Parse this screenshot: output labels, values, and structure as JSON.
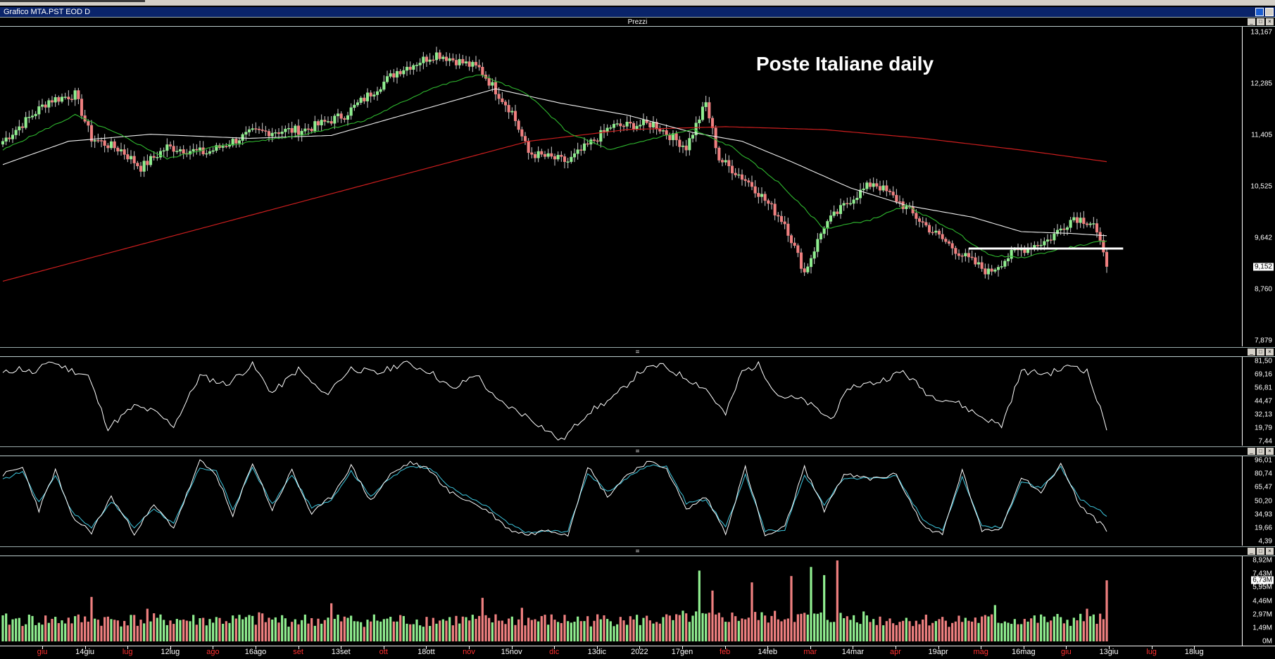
{
  "window": {
    "title": "Grafico MTA.PST EOD D"
  },
  "panels": {
    "price": {
      "label": "Prezzi"
    },
    "rsi": {
      "label": "="
    },
    "stoch": {
      "label": "="
    },
    "volume": {
      "label": "="
    }
  },
  "chart_data": {
    "type": "line",
    "title": "Poste Italiane daily",
    "colors": {
      "ma_short": "#2fb82f",
      "ma_mid": "#f0f0f0",
      "ma_long": "#cc1e1e",
      "up": "#90ee90",
      "down": "#f08080",
      "support": "#ffffff",
      "stoch_k": "#ffffff",
      "stoch_d": "#3ec8e0"
    },
    "price_axis": {
      "ticks": [
        "13,167",
        "12,285",
        "11,405",
        "10,525",
        "9,642",
        "8,760",
        "7,879"
      ],
      "range": [
        7.879,
        13.167
      ],
      "last": "9,152"
    },
    "rsi_axis": {
      "ticks": [
        "81,50",
        "69,16",
        "56,81",
        "44,47",
        "32,13",
        "19,79",
        "7,44"
      ]
    },
    "stoch_axis": {
      "ticks": [
        "96,01",
        "80,74",
        "65,47",
        "50,20",
        "34,93",
        "19,66",
        "4,39"
      ]
    },
    "volume_axis": {
      "ticks": [
        "8,92M",
        "7,43M",
        "5,95M",
        "4,46M",
        "2,97M",
        "1,49M",
        "0M"
      ],
      "last": "6,73M"
    },
    "x_axis": {
      "labels": [
        {
          "text": "giu",
          "month": true
        },
        {
          "text": "14giu",
          "month": false
        },
        {
          "text": "lug",
          "month": true
        },
        {
          "text": "12lug",
          "month": false
        },
        {
          "text": "ago",
          "month": true
        },
        {
          "text": "16ago",
          "month": false
        },
        {
          "text": "set",
          "month": true
        },
        {
          "text": "13set",
          "month": false
        },
        {
          "text": "ott",
          "month": true
        },
        {
          "text": "18ott",
          "month": false
        },
        {
          "text": "nov",
          "month": true
        },
        {
          "text": "15nov",
          "month": false
        },
        {
          "text": "dic",
          "month": true
        },
        {
          "text": "13dic",
          "month": false
        },
        {
          "text": "2022",
          "month": false
        },
        {
          "text": "17gen",
          "month": false
        },
        {
          "text": "feb",
          "month": true
        },
        {
          "text": "14feb",
          "month": false
        },
        {
          "text": "mar",
          "month": true
        },
        {
          "text": "14mar",
          "month": false
        },
        {
          "text": "apr",
          "month": true
        },
        {
          "text": "19apr",
          "month": false
        },
        {
          "text": "mag",
          "month": true
        },
        {
          "text": "16mag",
          "month": false
        },
        {
          "text": "giu",
          "month": true
        },
        {
          "text": "13giu",
          "month": false
        },
        {
          "text": "lug",
          "month": true
        },
        {
          "text": "18lug",
          "month": false
        }
      ]
    },
    "close_anchors": [
      [
        0,
        11.3
      ],
      [
        14,
        12.0
      ],
      [
        22,
        12.1
      ],
      [
        27,
        11.35
      ],
      [
        36,
        11.15
      ],
      [
        42,
        10.85
      ],
      [
        50,
        11.2
      ],
      [
        62,
        11.1
      ],
      [
        76,
        11.45
      ],
      [
        92,
        11.5
      ],
      [
        104,
        11.75
      ],
      [
        120,
        12.5
      ],
      [
        132,
        12.8
      ],
      [
        145,
        12.55
      ],
      [
        155,
        11.8
      ],
      [
        160,
        11.1
      ],
      [
        172,
        10.95
      ],
      [
        185,
        11.55
      ],
      [
        198,
        11.6
      ],
      [
        208,
        11.2
      ],
      [
        214,
        11.95
      ],
      [
        218,
        11.0
      ],
      [
        228,
        10.55
      ],
      [
        238,
        9.9
      ],
      [
        244,
        9.05
      ],
      [
        250,
        9.85
      ],
      [
        258,
        10.3
      ],
      [
        265,
        10.6
      ],
      [
        272,
        10.3
      ],
      [
        282,
        9.8
      ],
      [
        292,
        9.35
      ],
      [
        300,
        9.05
      ],
      [
        308,
        9.4
      ],
      [
        318,
        9.6
      ],
      [
        326,
        10.0
      ],
      [
        332,
        9.9
      ],
      [
        336,
        9.152
      ]
    ],
    "ma_short_anchors": [
      [
        0,
        11.15
      ],
      [
        22,
        11.75
      ],
      [
        36,
        11.4
      ],
      [
        50,
        11.0
      ],
      [
        64,
        11.2
      ],
      [
        90,
        11.4
      ],
      [
        110,
        11.65
      ],
      [
        130,
        12.2
      ],
      [
        145,
        12.45
      ],
      [
        160,
        12.1
      ],
      [
        172,
        11.45
      ],
      [
        185,
        11.15
      ],
      [
        198,
        11.35
      ],
      [
        210,
        11.5
      ],
      [
        222,
        11.2
      ],
      [
        236,
        10.6
      ],
      [
        250,
        9.8
      ],
      [
        264,
        9.95
      ],
      [
        275,
        10.2
      ],
      [
        290,
        9.75
      ],
      [
        300,
        9.35
      ],
      [
        310,
        9.3
      ],
      [
        322,
        9.45
      ],
      [
        336,
        9.6
      ]
    ],
    "ma_mid_anchors": [
      [
        0,
        10.9
      ],
      [
        20,
        11.3
      ],
      [
        45,
        11.42
      ],
      [
        75,
        11.35
      ],
      [
        100,
        11.4
      ],
      [
        125,
        11.8
      ],
      [
        150,
        12.2
      ],
      [
        170,
        11.95
      ],
      [
        190,
        11.75
      ],
      [
        210,
        11.45
      ],
      [
        225,
        11.3
      ],
      [
        240,
        10.95
      ],
      [
        258,
        10.5
      ],
      [
        275,
        10.2
      ],
      [
        295,
        10.0
      ],
      [
        310,
        9.75
      ],
      [
        325,
        9.72
      ],
      [
        336,
        9.68
      ]
    ],
    "ma_long_anchors": [
      [
        0,
        8.9
      ],
      [
        60,
        9.8
      ],
      [
        120,
        10.7
      ],
      [
        160,
        11.3
      ],
      [
        190,
        11.5
      ],
      [
        220,
        11.55
      ],
      [
        250,
        11.5
      ],
      [
        280,
        11.35
      ],
      [
        310,
        11.15
      ],
      [
        336,
        10.95
      ]
    ],
    "support_level": 9.46,
    "support_range": [
      294,
      341
    ],
    "rsi_anchors": [
      [
        0,
        70
      ],
      [
        5,
        75
      ],
      [
        10,
        70
      ],
      [
        14,
        82
      ],
      [
        20,
        74
      ],
      [
        26,
        68
      ],
      [
        32,
        20
      ],
      [
        40,
        40
      ],
      [
        46,
        35
      ],
      [
        52,
        22
      ],
      [
        60,
        68
      ],
      [
        68,
        60
      ],
      [
        76,
        78
      ],
      [
        82,
        52
      ],
      [
        90,
        74
      ],
      [
        98,
        50
      ],
      [
        106,
        75
      ],
      [
        114,
        70
      ],
      [
        122,
        80
      ],
      [
        130,
        72
      ],
      [
        137,
        55
      ],
      [
        144,
        70
      ],
      [
        150,
        46
      ],
      [
        160,
        30
      ],
      [
        170,
        8
      ],
      [
        178,
        34
      ],
      [
        186,
        48
      ],
      [
        194,
        72
      ],
      [
        200,
        78
      ],
      [
        208,
        66
      ],
      [
        214,
        56
      ],
      [
        220,
        32
      ],
      [
        225,
        72
      ],
      [
        230,
        78
      ],
      [
        236,
        50
      ],
      [
        244,
        45
      ],
      [
        252,
        28
      ],
      [
        258,
        58
      ],
      [
        266,
        62
      ],
      [
        274,
        72
      ],
      [
        282,
        50
      ],
      [
        290,
        44
      ],
      [
        298,
        30
      ],
      [
        304,
        22
      ],
      [
        310,
        72
      ],
      [
        318,
        70
      ],
      [
        326,
        78
      ],
      [
        330,
        72
      ],
      [
        336,
        20
      ]
    ],
    "stoch_k_anchors": [
      [
        0,
        80
      ],
      [
        6,
        88
      ],
      [
        11,
        40
      ],
      [
        16,
        85
      ],
      [
        21,
        32
      ],
      [
        27,
        15
      ],
      [
        33,
        55
      ],
      [
        40,
        14
      ],
      [
        46,
        45
      ],
      [
        52,
        20
      ],
      [
        60,
        95
      ],
      [
        65,
        80
      ],
      [
        70,
        32
      ],
      [
        76,
        94
      ],
      [
        82,
        40
      ],
      [
        88,
        85
      ],
      [
        94,
        35
      ],
      [
        100,
        55
      ],
      [
        106,
        90
      ],
      [
        112,
        50
      ],
      [
        118,
        80
      ],
      [
        124,
        94
      ],
      [
        130,
        85
      ],
      [
        136,
        60
      ],
      [
        142,
        50
      ],
      [
        148,
        38
      ],
      [
        154,
        18
      ],
      [
        160,
        12
      ],
      [
        166,
        18
      ],
      [
        172,
        12
      ],
      [
        178,
        90
      ],
      [
        184,
        55
      ],
      [
        190,
        80
      ],
      [
        196,
        94
      ],
      [
        202,
        88
      ],
      [
        208,
        40
      ],
      [
        214,
        55
      ],
      [
        220,
        14
      ],
      [
        226,
        88
      ],
      [
        232,
        10
      ],
      [
        238,
        20
      ],
      [
        244,
        88
      ],
      [
        250,
        40
      ],
      [
        256,
        80
      ],
      [
        264,
        75
      ],
      [
        272,
        80
      ],
      [
        280,
        22
      ],
      [
        286,
        12
      ],
      [
        292,
        85
      ],
      [
        298,
        15
      ],
      [
        304,
        20
      ],
      [
        310,
        78
      ],
      [
        316,
        60
      ],
      [
        322,
        92
      ],
      [
        328,
        44
      ],
      [
        336,
        18
      ]
    ],
    "stoch_d_anchors": [
      [
        0,
        74
      ],
      [
        6,
        84
      ],
      [
        11,
        48
      ],
      [
        16,
        80
      ],
      [
        21,
        38
      ],
      [
        27,
        20
      ],
      [
        33,
        50
      ],
      [
        40,
        20
      ],
      [
        46,
        42
      ],
      [
        52,
        24
      ],
      [
        60,
        88
      ],
      [
        65,
        84
      ],
      [
        70,
        40
      ],
      [
        76,
        88
      ],
      [
        82,
        46
      ],
      [
        88,
        80
      ],
      [
        94,
        42
      ],
      [
        100,
        52
      ],
      [
        106,
        84
      ],
      [
        112,
        56
      ],
      [
        118,
        76
      ],
      [
        124,
        90
      ],
      [
        130,
        88
      ],
      [
        136,
        66
      ],
      [
        142,
        54
      ],
      [
        148,
        42
      ],
      [
        154,
        24
      ],
      [
        160,
        14
      ],
      [
        166,
        16
      ],
      [
        172,
        16
      ],
      [
        178,
        82
      ],
      [
        184,
        60
      ],
      [
        190,
        76
      ],
      [
        196,
        90
      ],
      [
        202,
        90
      ],
      [
        208,
        48
      ],
      [
        214,
        52
      ],
      [
        220,
        20
      ],
      [
        226,
        80
      ],
      [
        232,
        16
      ],
      [
        238,
        18
      ],
      [
        244,
        80
      ],
      [
        250,
        46
      ],
      [
        256,
        76
      ],
      [
        264,
        76
      ],
      [
        272,
        78
      ],
      [
        280,
        30
      ],
      [
        286,
        16
      ],
      [
        292,
        78
      ],
      [
        298,
        22
      ],
      [
        304,
        20
      ],
      [
        310,
        72
      ],
      [
        316,
        64
      ],
      [
        322,
        88
      ],
      [
        328,
        52
      ],
      [
        336,
        34
      ]
    ],
    "volume_spikes": [
      [
        27,
        4.9
      ],
      [
        44,
        3.6
      ],
      [
        78,
        3.2
      ],
      [
        100,
        4.2
      ],
      [
        146,
        4.8
      ],
      [
        158,
        3.7
      ],
      [
        188,
        2.7
      ],
      [
        212,
        7.8
      ],
      [
        216,
        5.6
      ],
      [
        228,
        6.5
      ],
      [
        240,
        7.2
      ],
      [
        246,
        8.2
      ],
      [
        250,
        7.3
      ],
      [
        254,
        8.92
      ],
      [
        262,
        3.3
      ],
      [
        302,
        4.0
      ],
      [
        330,
        3.6
      ],
      [
        336,
        6.73
      ]
    ]
  }
}
